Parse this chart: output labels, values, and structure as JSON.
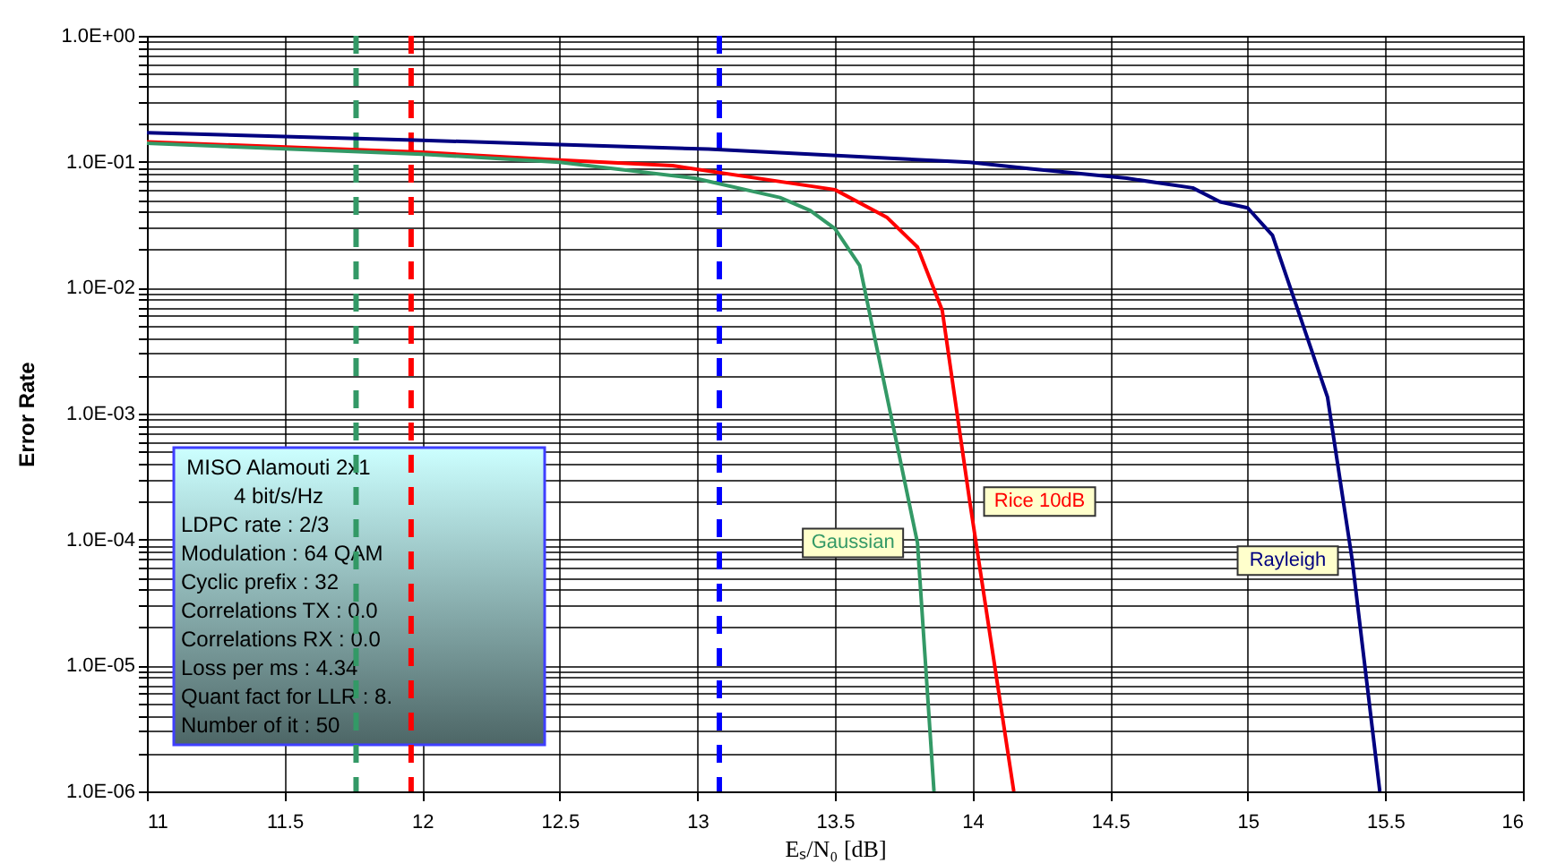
{
  "chart_data": {
    "type": "line",
    "xlabel": "Eₛ/N₀ [dB]",
    "ylabel": "Error Rate",
    "log": "y",
    "grid": true,
    "legend": false,
    "marker": "none",
    "line_style": "solid",
    "xlim": [
      11,
      16
    ],
    "xticks": [
      11,
      11.5,
      12,
      12.5,
      13,
      13.5,
      14,
      14.5,
      15,
      15.5,
      16
    ],
    "ylim": [
      1e-06,
      1
    ],
    "yticks": [
      {
        "value": 1e-06,
        "label": "1.0E-06"
      },
      {
        "value": 2e-06,
        "label": null
      },
      {
        "value": 3e-06,
        "label": null
      },
      {
        "value": 4e-06,
        "label": null
      },
      {
        "value": 5e-06,
        "label": null
      },
      {
        "value": 6e-06,
        "label": null
      },
      {
        "value": 7e-06,
        "label": null
      },
      {
        "value": 8e-06,
        "label": null
      },
      {
        "value": 9e-06,
        "label": null
      },
      {
        "value": 1e-05,
        "label": "1.0E-05"
      },
      {
        "value": 2e-05,
        "label": null
      },
      {
        "value": 3e-05,
        "label": null
      },
      {
        "value": 4e-05,
        "label": null
      },
      {
        "value": 5e-05,
        "label": null
      },
      {
        "value": 6e-05,
        "label": null
      },
      {
        "value": 7e-05,
        "label": null
      },
      {
        "value": 8e-05,
        "label": null
      },
      {
        "value": 9e-05,
        "label": null
      },
      {
        "value": 0.0001,
        "label": "1.0E-04"
      },
      {
        "value": 0.0002,
        "label": null
      },
      {
        "value": 0.0003,
        "label": null
      },
      {
        "value": 0.0004,
        "label": null
      },
      {
        "value": 0.0005,
        "label": null
      },
      {
        "value": 0.0006,
        "label": null
      },
      {
        "value": 0.0007,
        "label": null
      },
      {
        "value": 0.0008,
        "label": null
      },
      {
        "value": 0.0009,
        "label": null
      },
      {
        "value": 0.001,
        "label": "1.0E-03"
      },
      {
        "value": 0.002,
        "label": null
      },
      {
        "value": 0.003,
        "label": null
      },
      {
        "value": 0.004,
        "label": null
      },
      {
        "value": 0.005,
        "label": null
      },
      {
        "value": 0.006,
        "label": null
      },
      {
        "value": 0.007,
        "label": null
      },
      {
        "value": 0.008,
        "label": null
      },
      {
        "value": 0.009,
        "label": null
      },
      {
        "value": 0.01,
        "label": "1.0E-02"
      },
      {
        "value": 0.02,
        "label": null
      },
      {
        "value": 0.03,
        "label": null
      },
      {
        "value": 0.04,
        "label": null
      },
      {
        "value": 0.05,
        "label": null
      },
      {
        "value": 0.06,
        "label": null
      },
      {
        "value": 0.07,
        "label": null
      },
      {
        "value": 0.08,
        "label": null
      },
      {
        "value": 0.09,
        "label": null
      },
      {
        "value": 0.1,
        "label": "1.0E-01"
      },
      {
        "value": 0.2,
        "label": null
      },
      {
        "value": 0.3,
        "label": null
      },
      {
        "value": 0.4,
        "label": null
      },
      {
        "value": 0.5,
        "label": null
      },
      {
        "value": 0.6,
        "label": null
      },
      {
        "value": 0.7,
        "label": null
      },
      {
        "value": 0.8,
        "label": null
      },
      {
        "value": 0.9,
        "label": null
      },
      {
        "value": 1,
        "label": "1.0E+00"
      }
    ],
    "series": [
      {
        "name": "Rayleigh",
        "color": "#000080",
        "x": [
          11,
          12,
          12.5,
          13.04,
          13.99,
          14.21,
          14.56,
          14.8,
          14.9,
          15,
          15.09,
          15.29,
          15.38,
          15.48
        ],
        "values": [
          0.17,
          0.148,
          0.137,
          0.126,
          0.099,
          0.088,
          0.074,
          0.062,
          0.048,
          0.043,
          0.026,
          0.00135,
          6.8e-05,
          1e-06
        ]
      },
      {
        "name": "Rice 10dB",
        "color": "#ff0000",
        "x": [
          11,
          12,
          12.5,
          12.91,
          13.5,
          13.69,
          13.8,
          13.89,
          13.99,
          14.15
        ],
        "values": [
          0.144,
          0.119,
          0.103,
          0.093,
          0.06,
          0.036,
          0.021,
          0.0066,
          0.0002,
          1e-06
        ]
      },
      {
        "name": "Gaussian",
        "color": "#339966",
        "x": [
          11,
          12,
          12.5,
          12.99,
          13.3,
          13.41,
          13.5,
          13.59,
          13.8,
          13.86
        ],
        "values": [
          0.14,
          0.115,
          0.099,
          0.074,
          0.052,
          0.041,
          0.0294,
          0.015,
          9.4e-05,
          1e-06
        ]
      }
    ],
    "ref_lines": [
      {
        "axis": "x",
        "value": 11.76,
        "color": "#339966",
        "line_style": "dashed"
      },
      {
        "axis": "x",
        "value": 11.96,
        "color": "#ff0000",
        "line_style": "dashed"
      },
      {
        "axis": "x",
        "value": 13.08,
        "color": "#0000ff",
        "line_style": "dashed"
      }
    ],
    "annotations": [
      "MISO Alamouti 2x1",
      "4 bit/s/Hz",
      "LDPC rate : 2/3",
      "Modulation : 64 QAM",
      "Cyclic prefix : 32",
      "Correlations TX : 0.0",
      "Correlations RX : 0.0",
      "Loss per ms : 4.34",
      "Quant fact for LLR : 8.",
      "Number of it : 50"
    ]
  }
}
